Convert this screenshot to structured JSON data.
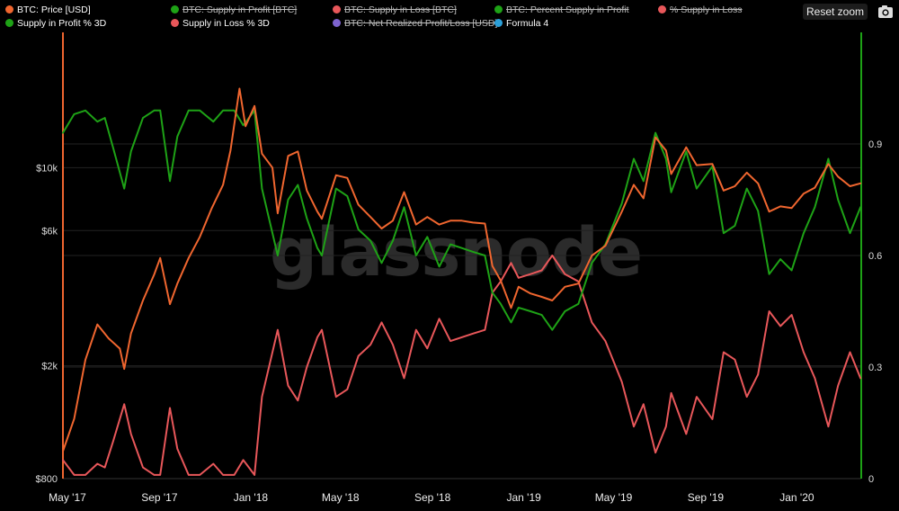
{
  "toolbar": {
    "reset_zoom": "Reset zoom",
    "export_icon": "camera-icon"
  },
  "watermark": "glassnode",
  "colors": {
    "price": "#f0662f",
    "green": "#1ea216",
    "red": "#e8575a",
    "purple": "#7d63cf",
    "blue": "#2b9fd8",
    "grid": "#222222"
  },
  "legend": [
    {
      "label": "BTC: Price [USD]",
      "color": "#f0662f",
      "hidden": false
    },
    {
      "label": "BTC: Supply in Profit [BTC]",
      "color": "#1ea216",
      "hidden": true
    },
    {
      "label": "BTC: Supply in Loss [BTC]",
      "color": "#e8575a",
      "hidden": true
    },
    {
      "label": "BTC: Percent Supply in Profit",
      "color": "#1ea216",
      "hidden": true
    },
    {
      "label": "% Supply in Loss",
      "color": "#e8575a",
      "hidden": true
    },
    {
      "label": "Supply in Profit % 3D",
      "color": "#1ea216",
      "hidden": false
    },
    {
      "label": "Supply in Loss % 3D",
      "color": "#e8575a",
      "hidden": false
    },
    {
      "label": "BTC: Net Realized Profit/Loss [USD]",
      "color": "#7d63cf",
      "hidden": true
    },
    {
      "label": "Formula 4",
      "color": "#2b9fd8",
      "hidden": false
    }
  ],
  "chart_data": {
    "type": "line",
    "x_range": [
      "2017-04-25",
      "2020-03-27"
    ],
    "x_ticks": [
      {
        "date": "2017-05-01",
        "label": "May '17"
      },
      {
        "date": "2017-09-01",
        "label": "Sep '17"
      },
      {
        "date": "2018-01-01",
        "label": "Jan '18"
      },
      {
        "date": "2018-05-01",
        "label": "May '18"
      },
      {
        "date": "2018-09-01",
        "label": "Sep '18"
      },
      {
        "date": "2019-01-01",
        "label": "Jan '19"
      },
      {
        "date": "2019-05-01",
        "label": "May '19"
      },
      {
        "date": "2019-09-01",
        "label": "Sep '19"
      },
      {
        "date": "2020-01-01",
        "label": "Jan '20"
      }
    ],
    "y_left": {
      "scale": "log",
      "range": [
        800,
        30000
      ],
      "ticks": [
        {
          "value": 800,
          "label": "$800"
        },
        {
          "value": 2000,
          "label": "$2k"
        },
        {
          "value": 6000,
          "label": "$6k"
        },
        {
          "value": 10000,
          "label": "$10k"
        }
      ]
    },
    "y_right": {
      "scale": "linear",
      "range": [
        0,
        1.2
      ],
      "ticks": [
        {
          "value": 0,
          "label": "0"
        },
        {
          "value": 0.3,
          "label": "0.3"
        },
        {
          "value": 0.6,
          "label": "0.6"
        },
        {
          "value": 0.9,
          "label": "0.9"
        }
      ]
    },
    "series": [
      {
        "name": "BTC: Price [USD]",
        "axis": "left",
        "color": "#f0662f",
        "points": [
          [
            "2017-04-25",
            1000
          ],
          [
            "2017-05-10",
            1300
          ],
          [
            "2017-05-25",
            2100
          ],
          [
            "2017-06-10",
            2800
          ],
          [
            "2017-06-25",
            2500
          ],
          [
            "2017-07-10",
            2300
          ],
          [
            "2017-07-16",
            1950
          ],
          [
            "2017-07-25",
            2600
          ],
          [
            "2017-08-10",
            3400
          ],
          [
            "2017-08-25",
            4200
          ],
          [
            "2017-09-02",
            4800
          ],
          [
            "2017-09-15",
            3300
          ],
          [
            "2017-09-25",
            3900
          ],
          [
            "2017-10-10",
            4800
          ],
          [
            "2017-10-25",
            5700
          ],
          [
            "2017-11-10",
            7200
          ],
          [
            "2017-11-25",
            8700
          ],
          [
            "2017-12-05",
            11500
          ],
          [
            "2017-12-17",
            19000
          ],
          [
            "2017-12-25",
            14000
          ],
          [
            "2018-01-06",
            16500
          ],
          [
            "2018-01-16",
            11200
          ],
          [
            "2018-01-30",
            10000
          ],
          [
            "2018-02-06",
            6900
          ],
          [
            "2018-02-20",
            11000
          ],
          [
            "2018-03-05",
            11400
          ],
          [
            "2018-03-17",
            8300
          ],
          [
            "2018-03-31",
            7000
          ],
          [
            "2018-04-06",
            6600
          ],
          [
            "2018-04-25",
            9400
          ],
          [
            "2018-05-10",
            9200
          ],
          [
            "2018-05-25",
            7400
          ],
          [
            "2018-06-10",
            6700
          ],
          [
            "2018-06-25",
            6100
          ],
          [
            "2018-07-10",
            6500
          ],
          [
            "2018-07-25",
            8200
          ],
          [
            "2018-08-10",
            6300
          ],
          [
            "2018-08-25",
            6700
          ],
          [
            "2018-09-10",
            6300
          ],
          [
            "2018-09-25",
            6500
          ],
          [
            "2018-10-10",
            6500
          ],
          [
            "2018-10-25",
            6400
          ],
          [
            "2018-11-10",
            6350
          ],
          [
            "2018-11-20",
            4500
          ],
          [
            "2018-12-01",
            4000
          ],
          [
            "2018-12-15",
            3200
          ],
          [
            "2018-12-25",
            3800
          ],
          [
            "2019-01-10",
            3600
          ],
          [
            "2019-01-25",
            3500
          ],
          [
            "2019-02-08",
            3400
          ],
          [
            "2019-02-25",
            3800
          ],
          [
            "2019-03-15",
            3900
          ],
          [
            "2019-04-02",
            4900
          ],
          [
            "2019-04-20",
            5300
          ],
          [
            "2019-05-12",
            7000
          ],
          [
            "2019-05-28",
            8700
          ],
          [
            "2019-06-10",
            7800
          ],
          [
            "2019-06-26",
            12800
          ],
          [
            "2019-07-10",
            11500
          ],
          [
            "2019-07-17",
            9500
          ],
          [
            "2019-08-06",
            11800
          ],
          [
            "2019-08-20",
            10200
          ],
          [
            "2019-09-10",
            10300
          ],
          [
            "2019-09-25",
            8300
          ],
          [
            "2019-10-10",
            8600
          ],
          [
            "2019-10-26",
            9600
          ],
          [
            "2019-11-10",
            8800
          ],
          [
            "2019-11-25",
            7000
          ],
          [
            "2019-12-10",
            7300
          ],
          [
            "2019-12-25",
            7200
          ],
          [
            "2020-01-10",
            8100
          ],
          [
            "2020-01-25",
            8500
          ],
          [
            "2020-02-12",
            10300
          ],
          [
            "2020-02-25",
            9300
          ],
          [
            "2020-03-12",
            8600
          ],
          [
            "2020-03-26",
            8800
          ]
        ]
      },
      {
        "name": "Supply in Profit % 3D",
        "axis": "right",
        "color": "#1ea216",
        "points": [
          [
            "2017-04-25",
            0.93
          ],
          [
            "2017-05-10",
            0.98
          ],
          [
            "2017-05-25",
            0.99
          ],
          [
            "2017-06-10",
            0.96
          ],
          [
            "2017-06-20",
            0.97
          ],
          [
            "2017-07-01",
            0.89
          ],
          [
            "2017-07-16",
            0.78
          ],
          [
            "2017-07-25",
            0.88
          ],
          [
            "2017-08-10",
            0.97
          ],
          [
            "2017-08-25",
            0.99
          ],
          [
            "2017-09-02",
            0.99
          ],
          [
            "2017-09-15",
            0.8
          ],
          [
            "2017-09-25",
            0.92
          ],
          [
            "2017-10-10",
            0.99
          ],
          [
            "2017-10-25",
            0.99
          ],
          [
            "2017-11-12",
            0.96
          ],
          [
            "2017-11-25",
            0.99
          ],
          [
            "2017-12-10",
            0.99
          ],
          [
            "2017-12-22",
            0.95
          ],
          [
            "2018-01-06",
            0.99
          ],
          [
            "2018-01-16",
            0.78
          ],
          [
            "2018-02-06",
            0.6
          ],
          [
            "2018-02-20",
            0.75
          ],
          [
            "2018-03-05",
            0.79
          ],
          [
            "2018-03-17",
            0.7
          ],
          [
            "2018-03-31",
            0.62
          ],
          [
            "2018-04-06",
            0.6
          ],
          [
            "2018-04-25",
            0.78
          ],
          [
            "2018-05-10",
            0.76
          ],
          [
            "2018-05-25",
            0.67
          ],
          [
            "2018-06-10",
            0.64
          ],
          [
            "2018-06-25",
            0.58
          ],
          [
            "2018-07-10",
            0.64
          ],
          [
            "2018-07-25",
            0.73
          ],
          [
            "2018-08-10",
            0.6
          ],
          [
            "2018-08-25",
            0.65
          ],
          [
            "2018-09-10",
            0.57
          ],
          [
            "2018-09-25",
            0.63
          ],
          [
            "2018-10-10",
            0.62
          ],
          [
            "2018-10-25",
            0.61
          ],
          [
            "2018-11-10",
            0.6
          ],
          [
            "2018-11-20",
            0.5
          ],
          [
            "2018-12-01",
            0.47
          ],
          [
            "2018-12-15",
            0.42
          ],
          [
            "2018-12-25",
            0.46
          ],
          [
            "2019-01-10",
            0.45
          ],
          [
            "2019-01-25",
            0.44
          ],
          [
            "2019-02-08",
            0.4
          ],
          [
            "2019-02-25",
            0.45
          ],
          [
            "2019-03-15",
            0.47
          ],
          [
            "2019-04-02",
            0.58
          ],
          [
            "2019-04-20",
            0.63
          ],
          [
            "2019-05-12",
            0.74
          ],
          [
            "2019-05-28",
            0.86
          ],
          [
            "2019-06-10",
            0.8
          ],
          [
            "2019-06-26",
            0.93
          ],
          [
            "2019-07-10",
            0.86
          ],
          [
            "2019-07-17",
            0.77
          ],
          [
            "2019-08-06",
            0.88
          ],
          [
            "2019-08-20",
            0.78
          ],
          [
            "2019-09-10",
            0.84
          ],
          [
            "2019-09-25",
            0.66
          ],
          [
            "2019-10-10",
            0.68
          ],
          [
            "2019-10-26",
            0.78
          ],
          [
            "2019-11-10",
            0.72
          ],
          [
            "2019-11-25",
            0.55
          ],
          [
            "2019-12-10",
            0.59
          ],
          [
            "2019-12-25",
            0.56
          ],
          [
            "2020-01-10",
            0.66
          ],
          [
            "2020-01-25",
            0.73
          ],
          [
            "2020-02-12",
            0.86
          ],
          [
            "2020-02-25",
            0.75
          ],
          [
            "2020-03-12",
            0.66
          ],
          [
            "2020-03-26",
            0.73
          ]
        ]
      },
      {
        "name": "Supply in Loss % 3D",
        "axis": "right",
        "color": "#e8575a",
        "points": [
          [
            "2017-04-25",
            0.05
          ],
          [
            "2017-05-10",
            0.01
          ],
          [
            "2017-05-25",
            0.01
          ],
          [
            "2017-06-10",
            0.04
          ],
          [
            "2017-06-20",
            0.03
          ],
          [
            "2017-07-01",
            0.1
          ],
          [
            "2017-07-16",
            0.2
          ],
          [
            "2017-07-25",
            0.12
          ],
          [
            "2017-08-10",
            0.03
          ],
          [
            "2017-08-25",
            0.01
          ],
          [
            "2017-09-02",
            0.01
          ],
          [
            "2017-09-15",
            0.19
          ],
          [
            "2017-09-25",
            0.08
          ],
          [
            "2017-10-10",
            0.01
          ],
          [
            "2017-10-25",
            0.01
          ],
          [
            "2017-11-12",
            0.04
          ],
          [
            "2017-11-25",
            0.01
          ],
          [
            "2017-12-10",
            0.01
          ],
          [
            "2017-12-22",
            0.05
          ],
          [
            "2018-01-06",
            0.01
          ],
          [
            "2018-01-16",
            0.22
          ],
          [
            "2018-02-06",
            0.4
          ],
          [
            "2018-02-20",
            0.25
          ],
          [
            "2018-03-05",
            0.21
          ],
          [
            "2018-03-17",
            0.3
          ],
          [
            "2018-03-31",
            0.38
          ],
          [
            "2018-04-06",
            0.4
          ],
          [
            "2018-04-25",
            0.22
          ],
          [
            "2018-05-10",
            0.24
          ],
          [
            "2018-05-25",
            0.33
          ],
          [
            "2018-06-10",
            0.36
          ],
          [
            "2018-06-25",
            0.42
          ],
          [
            "2018-07-10",
            0.36
          ],
          [
            "2018-07-25",
            0.27
          ],
          [
            "2018-08-10",
            0.4
          ],
          [
            "2018-08-25",
            0.35
          ],
          [
            "2018-09-10",
            0.43
          ],
          [
            "2018-09-25",
            0.37
          ],
          [
            "2018-10-10",
            0.38
          ],
          [
            "2018-10-25",
            0.39
          ],
          [
            "2018-11-10",
            0.4
          ],
          [
            "2018-11-20",
            0.5
          ],
          [
            "2018-12-01",
            0.53
          ],
          [
            "2018-12-15",
            0.58
          ],
          [
            "2018-12-25",
            0.54
          ],
          [
            "2019-01-10",
            0.55
          ],
          [
            "2019-01-25",
            0.56
          ],
          [
            "2019-02-08",
            0.6
          ],
          [
            "2019-02-25",
            0.55
          ],
          [
            "2019-03-15",
            0.53
          ],
          [
            "2019-04-02",
            0.42
          ],
          [
            "2019-04-20",
            0.37
          ],
          [
            "2019-05-12",
            0.26
          ],
          [
            "2019-05-28",
            0.14
          ],
          [
            "2019-06-10",
            0.2
          ],
          [
            "2019-06-26",
            0.07
          ],
          [
            "2019-07-10",
            0.14
          ],
          [
            "2019-07-17",
            0.23
          ],
          [
            "2019-08-06",
            0.12
          ],
          [
            "2019-08-20",
            0.22
          ],
          [
            "2019-09-10",
            0.16
          ],
          [
            "2019-09-25",
            0.34
          ],
          [
            "2019-10-10",
            0.32
          ],
          [
            "2019-10-26",
            0.22
          ],
          [
            "2019-11-10",
            0.28
          ],
          [
            "2019-11-25",
            0.45
          ],
          [
            "2019-12-10",
            0.41
          ],
          [
            "2019-12-25",
            0.44
          ],
          [
            "2020-01-10",
            0.34
          ],
          [
            "2020-01-25",
            0.27
          ],
          [
            "2020-02-12",
            0.14
          ],
          [
            "2020-02-25",
            0.25
          ],
          [
            "2020-03-12",
            0.34
          ],
          [
            "2020-03-26",
            0.27
          ]
        ]
      }
    ],
    "grid": true,
    "legend_position": "top-left"
  }
}
